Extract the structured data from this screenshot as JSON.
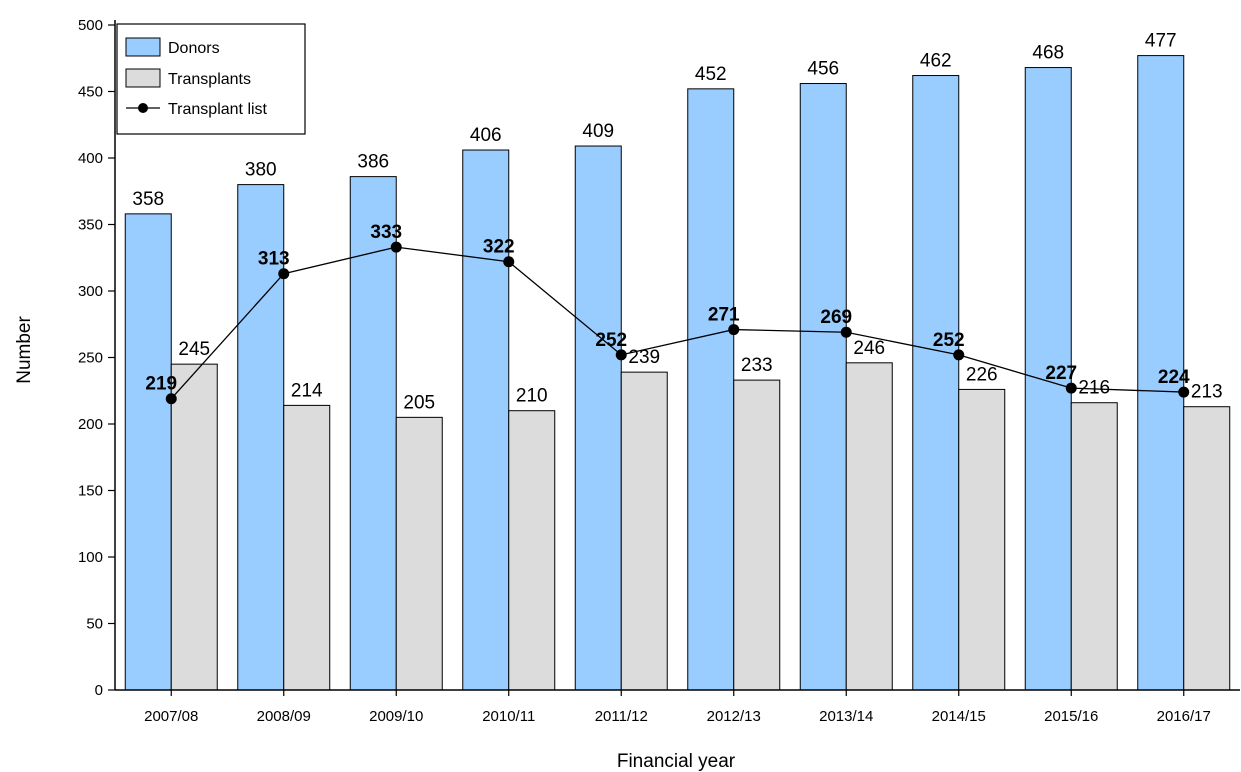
{
  "chart_data": {
    "type": "bar",
    "categories": [
      "2007/08",
      "2008/09",
      "2009/10",
      "2010/11",
      "2011/12",
      "2012/13",
      "2013/14",
      "2014/15",
      "2015/16",
      "2016/17"
    ],
    "series": [
      {
        "name": "Donors",
        "type": "bar",
        "color": "#99ccff",
        "values": [
          358,
          380,
          386,
          406,
          409,
          452,
          456,
          462,
          468,
          477
        ]
      },
      {
        "name": "Transplants",
        "type": "bar",
        "color": "#dcdcdc",
        "values": [
          245,
          214,
          205,
          210,
          239,
          233,
          246,
          226,
          216,
          213
        ]
      },
      {
        "name": "Transplant list",
        "type": "line",
        "color": "#000000",
        "values": [
          219,
          313,
          333,
          322,
          252,
          271,
          269,
          252,
          227,
          224
        ]
      }
    ],
    "xlabel": "Financial year",
    "ylabel": "Number",
    "ylim": [
      0,
      500
    ],
    "yticks": [
      0,
      50,
      100,
      150,
      200,
      250,
      300,
      350,
      400,
      450,
      500
    ],
    "grid": false,
    "legend": "top-left"
  }
}
